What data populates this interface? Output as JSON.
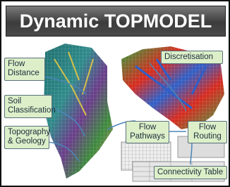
{
  "title": "Dynamic TOPMODEL",
  "nodes": [
    {
      "lines": [
        "Flow",
        "Distance"
      ]
    },
    {
      "lines": [
        "Soil",
        "Classification"
      ]
    },
    {
      "lines": [
        "Topography",
        "& Geology"
      ]
    },
    {
      "lines": [
        "Discretisation"
      ]
    },
    {
      "lines": [
        "Flow",
        "Pathways"
      ]
    },
    {
      "lines": [
        "Flow",
        "Routing"
      ]
    },
    {
      "lines": [
        "Connectivity Table"
      ]
    }
  ]
}
